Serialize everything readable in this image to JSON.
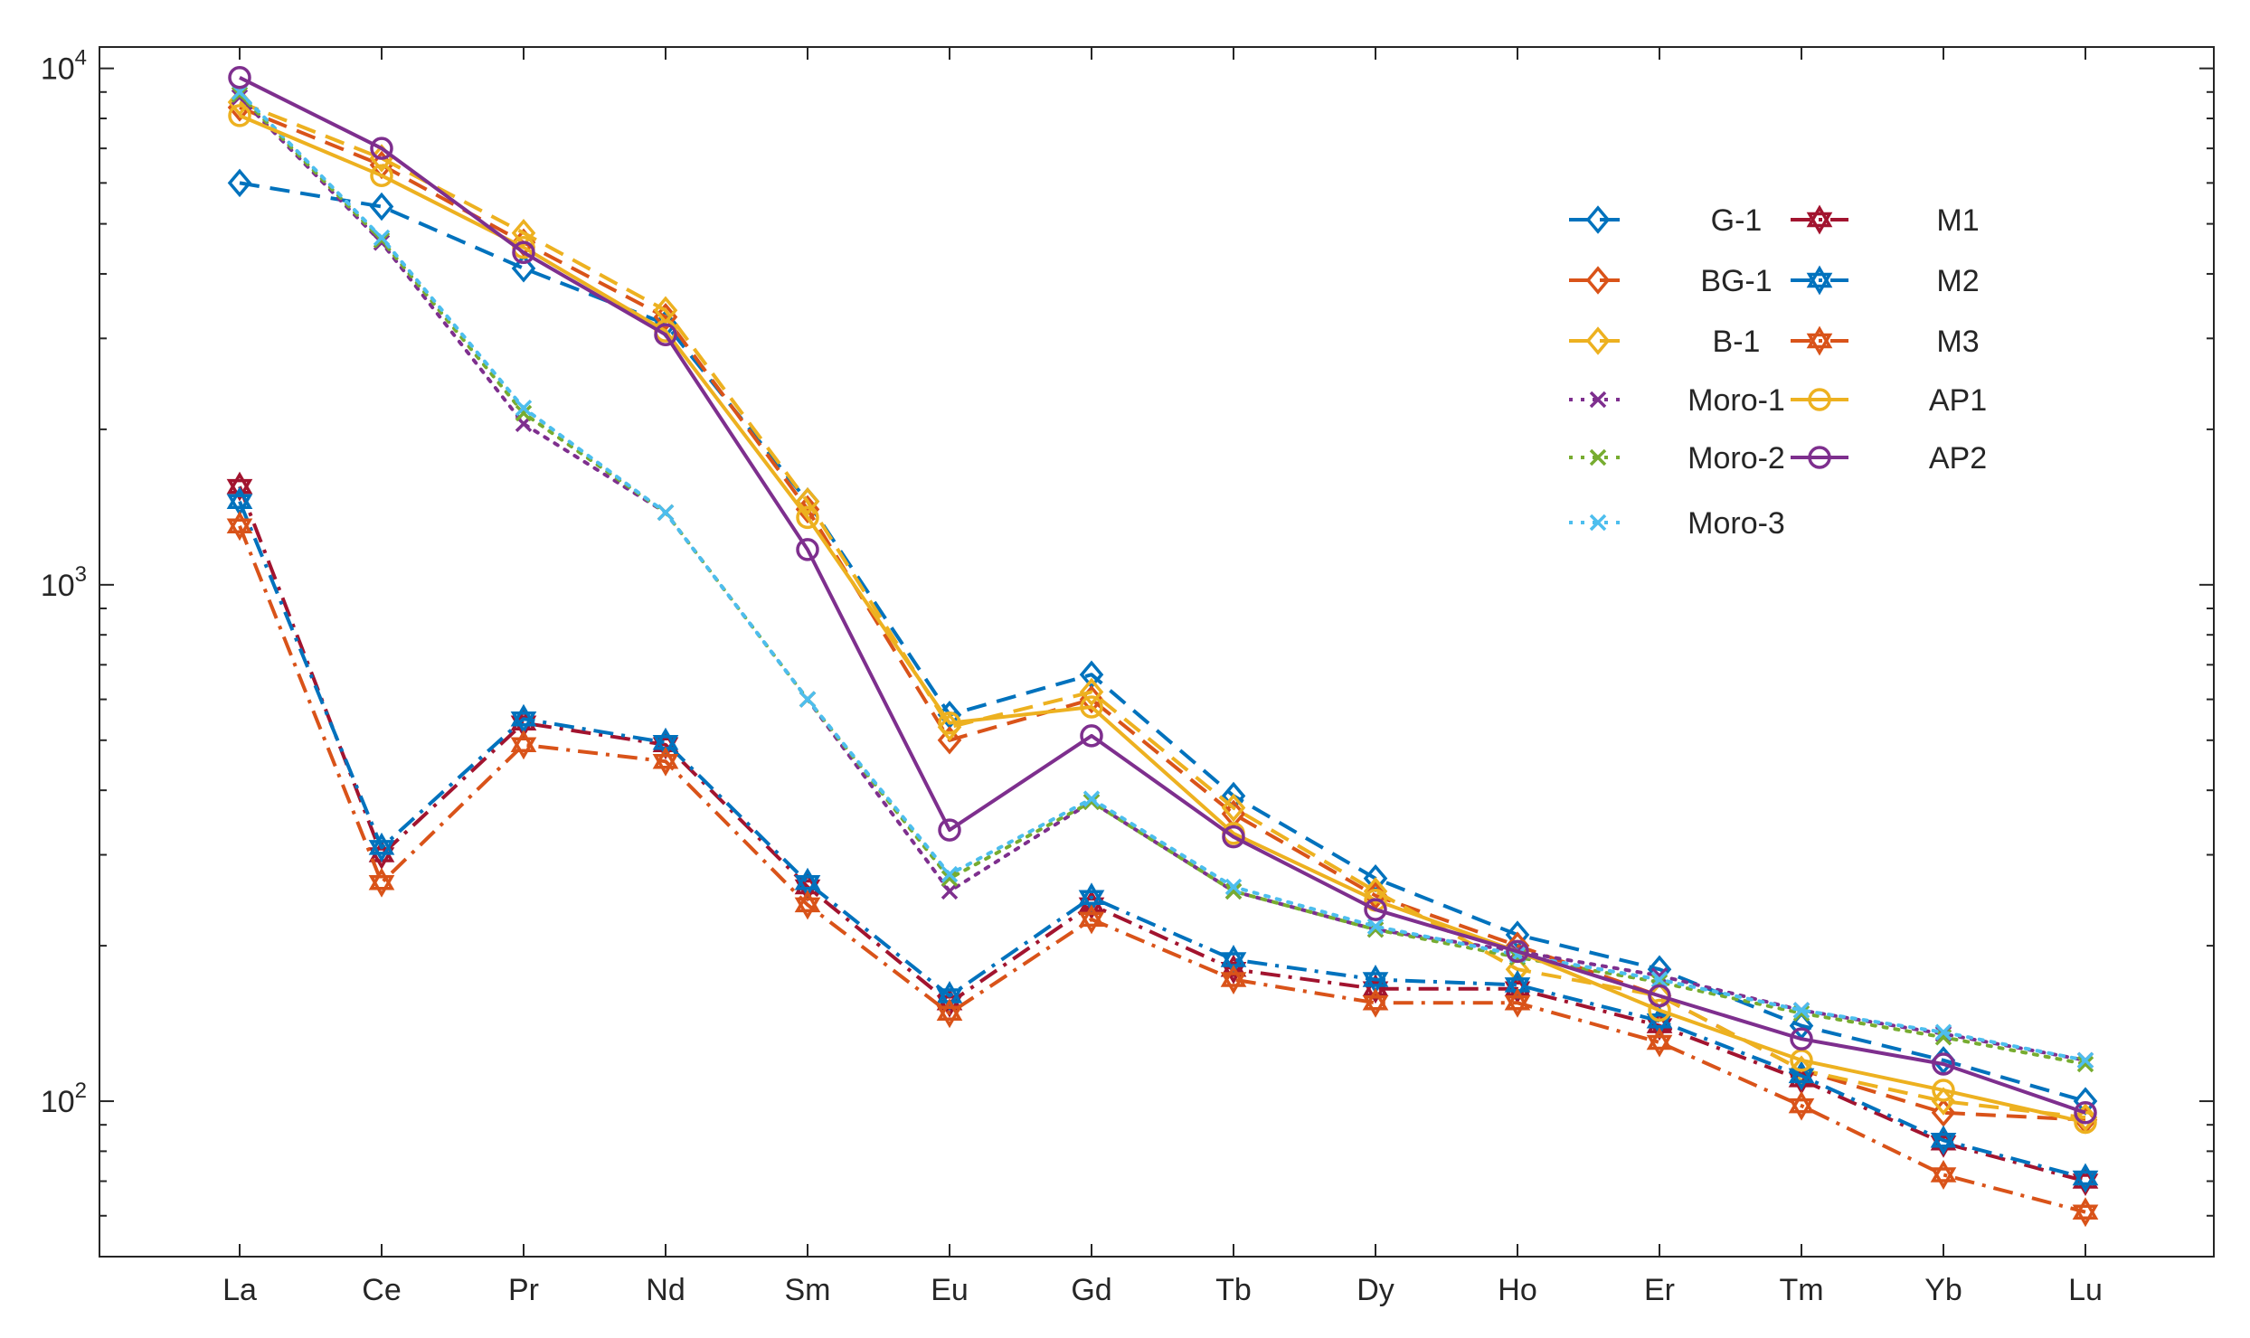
{
  "chart_data": {
    "type": "line",
    "title": "",
    "xlabel": "",
    "ylabel": "",
    "yscale": "log",
    "ylim": [
      50,
      11000
    ],
    "grid": false,
    "legend_position": "top-right",
    "categories": [
      "La",
      "Ce",
      "Pr",
      "Nd",
      "Sm",
      "Eu",
      "Gd",
      "Tb",
      "Dy",
      "Ho",
      "Er",
      "Tm",
      "Yb",
      "Lu"
    ],
    "y_ticks": [
      {
        "value": 100,
        "base": "10",
        "exp": "2"
      },
      {
        "value": 1000,
        "base": "10",
        "exp": "3"
      },
      {
        "value": 10000,
        "base": "10",
        "exp": "4"
      }
    ],
    "series": [
      {
        "name": "G-1",
        "color": "#0072BD",
        "dash": "dashed",
        "marker": "diamond",
        "values": [
          6000,
          5400,
          4100,
          3200,
          1450,
          560,
          670,
          390,
          270,
          210,
          180,
          140,
          120,
          100
        ]
      },
      {
        "name": "BG-1",
        "color": "#D95319",
        "dash": "dashed",
        "marker": "diamond",
        "values": [
          8400,
          6500,
          4600,
          3300,
          1400,
          500,
          600,
          360,
          250,
          200,
          160,
          115,
          95,
          92
        ]
      },
      {
        "name": "B-1",
        "color": "#EDB120",
        "dash": "dashed",
        "marker": "diamond",
        "values": [
          8600,
          6700,
          4800,
          3400,
          1450,
          530,
          620,
          370,
          255,
          180,
          160,
          115,
          100,
          93
        ]
      },
      {
        "name": "Moro-1",
        "color": "#7E2F8E",
        "dash": "dotted",
        "marker": "x",
        "values": [
          8800,
          4600,
          2050,
          1380,
          600,
          255,
          380,
          255,
          215,
          195,
          175,
          150,
          135,
          120
        ]
      },
      {
        "name": "Moro-2",
        "color": "#77AC30",
        "dash": "dotted",
        "marker": "x",
        "values": [
          8900,
          4650,
          2150,
          1380,
          600,
          270,
          380,
          255,
          215,
          190,
          170,
          148,
          133,
          118
        ]
      },
      {
        "name": "Moro-3",
        "color": "#4DBEEE",
        "dash": "dotted",
        "marker": "x",
        "values": [
          9000,
          4700,
          2200,
          1380,
          600,
          275,
          385,
          260,
          218,
          192,
          172,
          150,
          136,
          120
        ]
      },
      {
        "name": "M1",
        "color": "#A2142F",
        "dash": "dashdot",
        "marker": "hexagram",
        "values": [
          1550,
          300,
          540,
          490,
          260,
          155,
          240,
          180,
          165,
          165,
          140,
          110,
          83,
          70
        ]
      },
      {
        "name": "M2",
        "color": "#0072BD",
        "dash": "dashdot",
        "marker": "hexagram",
        "values": [
          1450,
          310,
          550,
          495,
          265,
          160,
          248,
          188,
          172,
          168,
          143,
          112,
          84,
          71
        ]
      },
      {
        "name": "M3",
        "color": "#D95319",
        "dash": "dashdot",
        "marker": "hexagram",
        "values": [
          1300,
          265,
          490,
          455,
          240,
          148,
          225,
          172,
          155,
          155,
          130,
          98,
          72,
          61
        ]
      },
      {
        "name": "AP1",
        "color": "#EDB120",
        "dash": "solid",
        "marker": "circle",
        "values": [
          8100,
          6200,
          4500,
          3100,
          1350,
          540,
          580,
          330,
          245,
          195,
          150,
          120,
          105,
          91
        ]
      },
      {
        "name": "AP2",
        "color": "#7E2F8E",
        "dash": "solid",
        "marker": "circle",
        "values": [
          9600,
          7000,
          4400,
          3050,
          1170,
          335,
          510,
          325,
          235,
          195,
          160,
          132,
          118,
          95
        ]
      }
    ]
  }
}
